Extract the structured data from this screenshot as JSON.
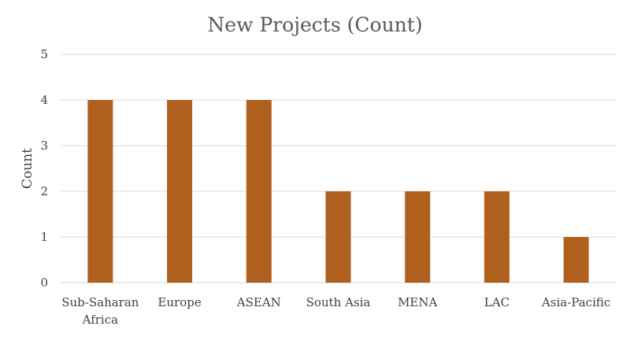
{
  "chart_data": {
    "type": "bar",
    "title": "New Projects (Count)",
    "xlabel": "",
    "ylabel": "Count",
    "categories": [
      "Sub-Saharan Africa",
      "Europe",
      "ASEAN",
      "South Asia",
      "MENA",
      "LAC",
      "Asia-Pacific"
    ],
    "category_lines": [
      [
        "Sub-Saharan",
        "Africa"
      ],
      [
        "Europe"
      ],
      [
        "ASEAN"
      ],
      [
        "South Asia"
      ],
      [
        "MENA"
      ],
      [
        "LAC"
      ],
      [
        "Asia-Pacific"
      ]
    ],
    "values": [
      4,
      4,
      4,
      2,
      2,
      2,
      1
    ],
    "ylim": [
      0,
      5
    ],
    "yticks": [
      0,
      1,
      2,
      3,
      4,
      5
    ],
    "grid": true,
    "legend": "none",
    "bar_color": "#B0601E"
  }
}
